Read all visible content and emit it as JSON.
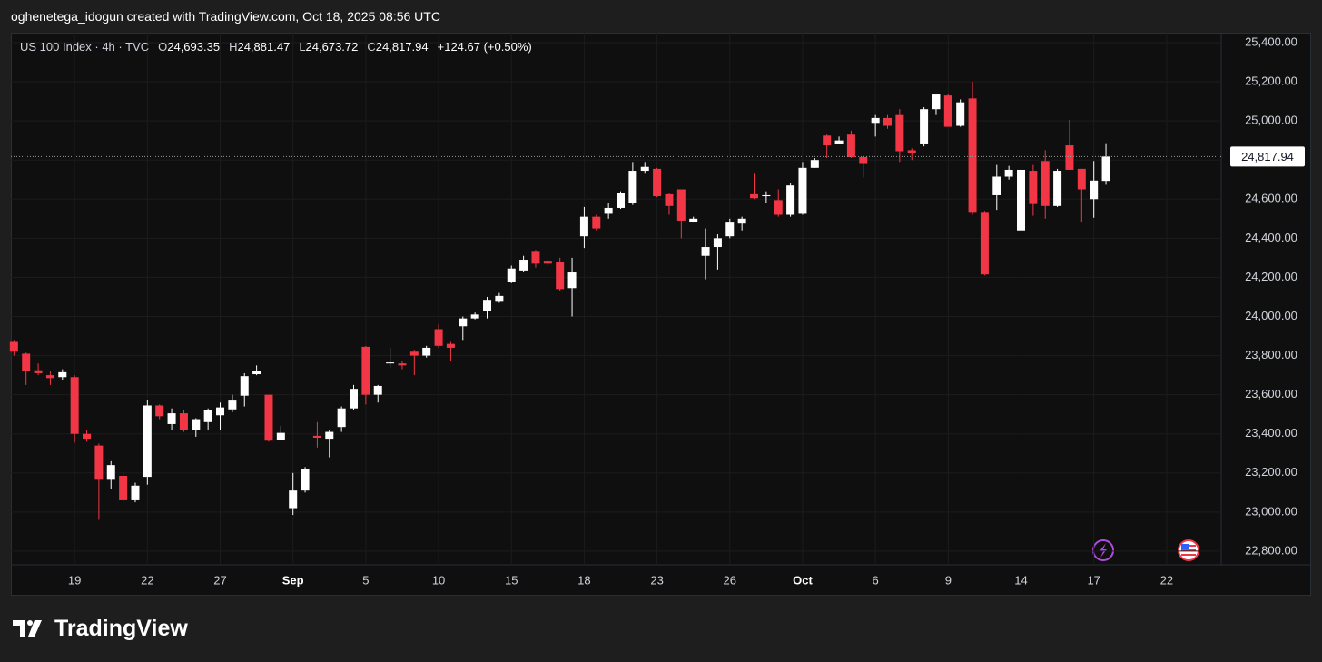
{
  "attribution": "oghenetega_idogun created with TradingView.com, Oct 18, 2025 08:56 UTC",
  "brand": "TradingView",
  "chart_data": {
    "type": "candlestick",
    "title": "US 100 Index · 4h · TVC",
    "ohlc_letters": [
      "O",
      "H",
      "L",
      "C"
    ],
    "ohlc_labels": [
      "24,693.35",
      "24,881.47",
      "24,673.72",
      "24,817.94"
    ],
    "change_label": "+124.67 (+0.50%)",
    "last_price": 24817.94,
    "last_price_label": "24,817.94",
    "up_color": "#ffffff",
    "down_color": "#f23645",
    "grid": true,
    "open": [
      23870,
      23810,
      23725,
      23700,
      23690,
      23690,
      23400,
      23340,
      23165,
      23185,
      23060,
      23180,
      23545,
      23450,
      23505,
      23420,
      23460,
      23495,
      23525,
      23595,
      23705,
      23600,
      23370,
      23020,
      23110,
      23390,
      23375,
      23435,
      23530,
      23845,
      23600,
      23760,
      23760,
      23820,
      23800,
      23935,
      23860,
      23950,
      23990,
      24030,
      24075,
      24175,
      24235,
      24335,
      24285,
      24280,
      24145,
      24410,
      24510,
      24525,
      24555,
      24580,
      24745,
      24755,
      24625,
      24650,
      24485,
      24310,
      24355,
      24410,
      24475,
      24625,
      24615,
      24595,
      24520,
      24525,
      24760,
      24925,
      24880,
      24930,
      24815,
      24990,
      25015,
      25030,
      24850,
      24880,
      25060,
      25130,
      24975,
      25115,
      24530,
      24620,
      24715,
      24440,
      24745,
      24795,
      24565,
      24875,
      24755,
      24600,
      24693.35
    ],
    "high": [
      23880,
      23815,
      23760,
      23720,
      23730,
      23700,
      23420,
      23350,
      23260,
      23200,
      23150,
      23575,
      23550,
      23530,
      23520,
      23480,
      23530,
      23560,
      23600,
      23710,
      23750,
      23600,
      23440,
      23200,
      23230,
      23460,
      23420,
      23540,
      23650,
      23850,
      23650,
      23840,
      23770,
      23830,
      23850,
      23960,
      23870,
      24000,
      24020,
      24100,
      24120,
      24260,
      24310,
      24340,
      24290,
      24300,
      24300,
      24560,
      24520,
      24580,
      24640,
      24790,
      24790,
      24760,
      24630,
      24650,
      24510,
      24450,
      24420,
      24500,
      24510,
      24730,
      24640,
      24650,
      24680,
      24790,
      24810,
      24930,
      24920,
      24950,
      24820,
      25030,
      25030,
      25060,
      24860,
      25070,
      25140,
      25140,
      25110,
      25200,
      24540,
      24775,
      24770,
      24760,
      24775,
      24850,
      24755,
      25005,
      24755,
      24795,
      24881.47
    ],
    "low": [
      23800,
      23650,
      23700,
      23650,
      23675,
      23355,
      23360,
      22960,
      23120,
      23050,
      23050,
      23140,
      23475,
      23420,
      23410,
      23385,
      23420,
      23420,
      23510,
      23540,
      23700,
      23360,
      23370,
      22985,
      23100,
      23330,
      23280,
      23410,
      23520,
      23550,
      23560,
      23740,
      23730,
      23700,
      23790,
      23840,
      23770,
      23880,
      23985,
      23990,
      24070,
      24170,
      24230,
      24250,
      24260,
      24130,
      24000,
      24350,
      24440,
      24500,
      24550,
      24570,
      24730,
      24610,
      24520,
      24400,
      24480,
      24190,
      24240,
      24400,
      24440,
      24600,
      24580,
      24510,
      24510,
      24520,
      24760,
      24810,
      24880,
      24810,
      24710,
      24920,
      24960,
      24790,
      24800,
      24870,
      25030,
      24970,
      24970,
      24520,
      24210,
      24545,
      24700,
      24250,
      24515,
      24500,
      24560,
      24750,
      24480,
      24505,
      24673.72
    ],
    "close": [
      23820,
      23720,
      23710,
      23685,
      23715,
      23400,
      23375,
      23165,
      23240,
      23060,
      23135,
      23545,
      23490,
      23505,
      23420,
      23475,
      23520,
      23535,
      23570,
      23695,
      23720,
      23365,
      23405,
      23110,
      23220,
      23380,
      23410,
      23530,
      23630,
      23600,
      23645,
      23765,
      23750,
      23800,
      23840,
      23850,
      23840,
      23990,
      24010,
      24085,
      24105,
      24245,
      24290,
      24270,
      24270,
      24140,
      24225,
      24510,
      24450,
      24555,
      24630,
      24745,
      24765,
      24615,
      24565,
      24490,
      24500,
      24355,
      24400,
      24480,
      24500,
      24605,
      24620,
      24520,
      24670,
      24760,
      24800,
      24875,
      24900,
      24815,
      24780,
      25015,
      24975,
      24845,
      24835,
      25060,
      25135,
      24970,
      25095,
      24530,
      24215,
      24715,
      24750,
      24750,
      24575,
      24565,
      24745,
      24750,
      24650,
      24695,
      24817.94
    ],
    "xlim": [
      -0.25,
      99.5
    ],
    "xticks": [
      {
        "value": 5,
        "label": "19"
      },
      {
        "value": 11,
        "label": "22"
      },
      {
        "value": 17,
        "label": "27"
      },
      {
        "value": 23,
        "label": "Sep"
      },
      {
        "value": 29,
        "label": "5"
      },
      {
        "value": 35,
        "label": "10"
      },
      {
        "value": 41,
        "label": "15"
      },
      {
        "value": 47,
        "label": "18"
      },
      {
        "value": 53,
        "label": "23"
      },
      {
        "value": 59,
        "label": "26"
      },
      {
        "value": 65,
        "label": "Oct"
      },
      {
        "value": 71,
        "label": "6"
      },
      {
        "value": 77,
        "label": "9"
      },
      {
        "value": 83,
        "label": "14"
      },
      {
        "value": 89,
        "label": "17"
      },
      {
        "value": 95,
        "label": "22"
      }
    ],
    "ylim": [
      22730,
      25451
    ],
    "yticks": [
      {
        "value": 22800,
        "label": "22,800.00"
      },
      {
        "value": 23000,
        "label": "23,000.00"
      },
      {
        "value": 23200,
        "label": "23,200.00"
      },
      {
        "value": 23400,
        "label": "23,400.00"
      },
      {
        "value": 23600,
        "label": "23,600.00"
      },
      {
        "value": 23800,
        "label": "23,800.00"
      },
      {
        "value": 24000,
        "label": "24,000.00"
      },
      {
        "value": 24200,
        "label": "24,200.00"
      },
      {
        "value": 24400,
        "label": "24,400.00"
      },
      {
        "value": 24600,
        "label": "24,600.00"
      },
      {
        "value": 24800,
        "label": "24,800.00"
      },
      {
        "value": 25000,
        "label": "25,000.00"
      },
      {
        "value": 25200,
        "label": "25,200.00"
      },
      {
        "value": 25400,
        "label": "25,400.00"
      }
    ]
  }
}
